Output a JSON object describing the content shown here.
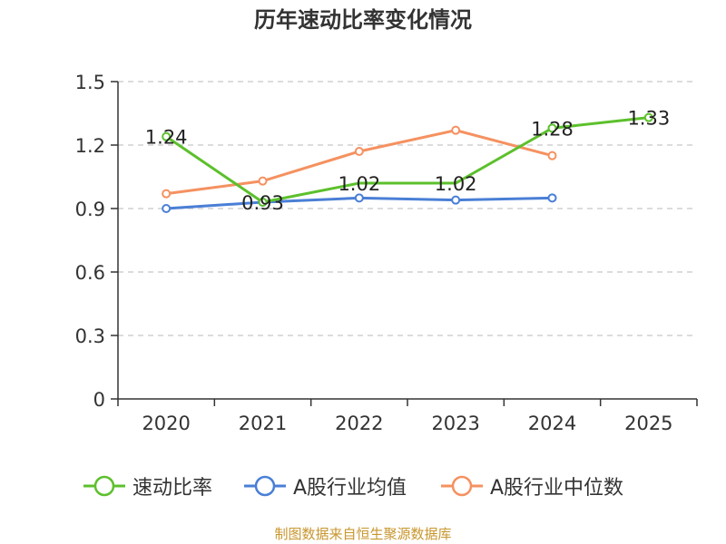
{
  "chart_data": {
    "type": "line",
    "title": "历年速动比率变化情况",
    "categories": [
      "2020",
      "2021",
      "2022",
      "2023",
      "2024",
      "2025"
    ],
    "ylim": [
      0,
      1.5
    ],
    "yticks": [
      "0",
      "0.3",
      "0.6",
      "0.9",
      "1.2",
      "1.5"
    ],
    "ytick_values": [
      0,
      0.3,
      0.6,
      0.9,
      1.2,
      1.5
    ],
    "grid": true,
    "legend_position": "bottom",
    "series": [
      {
        "name": "速动比率",
        "color": "#5cc02c",
        "values": [
          1.24,
          0.93,
          1.02,
          1.02,
          1.28,
          1.33
        ],
        "labels": [
          "1.24",
          "0.93",
          "1.02",
          "1.02",
          "1.28",
          "1.33"
        ],
        "markers": [
          1,
          1,
          0,
          0,
          1,
          1
        ]
      },
      {
        "name": "A股行业均值",
        "color": "#4a7fd6",
        "values": [
          0.9,
          0.93,
          0.95,
          0.94,
          0.95,
          null
        ]
      },
      {
        "name": "A股行业中位数",
        "color": "#f59160",
        "values": [
          0.97,
          1.03,
          1.17,
          1.27,
          1.15,
          null
        ]
      }
    ]
  },
  "source": "制图数据来自恒生聚源数据库"
}
